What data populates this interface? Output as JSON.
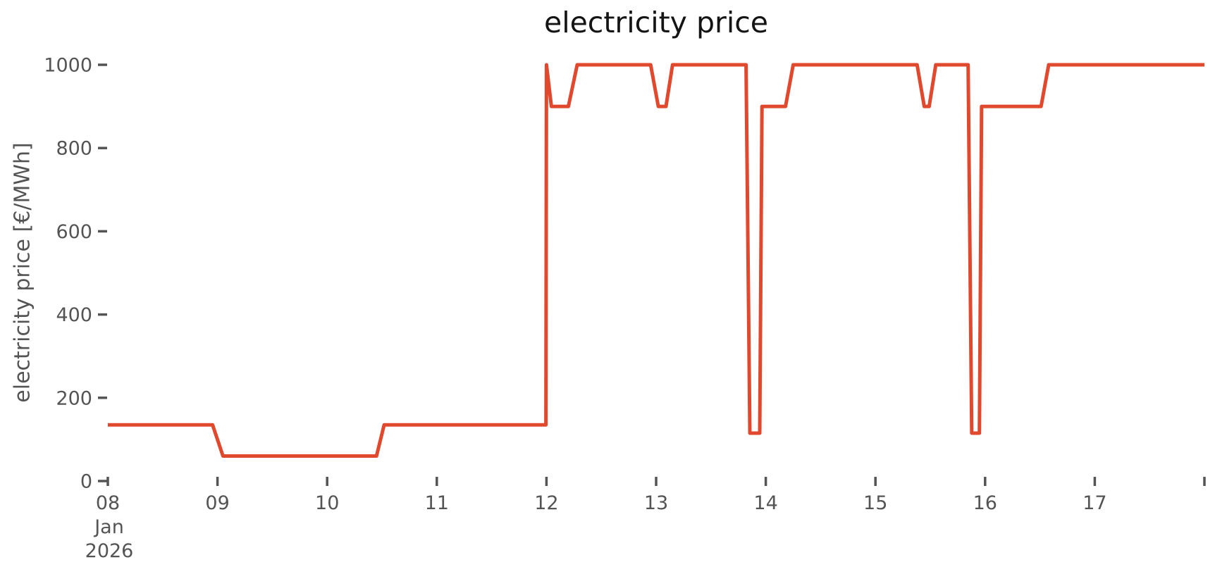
{
  "chart_data": {
    "type": "line",
    "title": "electricity price",
    "xlabel": "",
    "ylabel": "electricity price [€/MWh]",
    "grid": false,
    "legend": false,
    "background_color": "#ffffff",
    "title_color": "#141414",
    "label_color": "#545454",
    "x_axis": {
      "unit": "day of month, January 2026",
      "tick_days": [
        8,
        9,
        10,
        11,
        12,
        13,
        14,
        15,
        16,
        17
      ],
      "tick_labels": [
        "08",
        "09",
        "10",
        "11",
        "12",
        "13",
        "14",
        "15",
        "16",
        "17"
      ],
      "first_tick_sublabels": [
        "Jan",
        "2026"
      ],
      "unlabeled_tick_day": 18,
      "range_days": [
        8,
        18
      ]
    },
    "y_axis": {
      "ticks": [
        0,
        200,
        400,
        600,
        800,
        1000
      ],
      "tick_labels": [
        "0",
        "200",
        "400",
        "600",
        "800",
        "1000"
      ],
      "range": [
        0,
        1050
      ]
    },
    "series": [
      {
        "name": "electricity price",
        "color": "#e0492e",
        "line_width": 5,
        "points_day_value": [
          [
            8.0,
            135
          ],
          [
            8.955,
            135
          ],
          [
            9.05,
            60
          ],
          [
            10.45,
            60
          ],
          [
            10.52,
            135
          ],
          [
            11.995,
            135
          ],
          [
            12.0,
            1000
          ],
          [
            12.045,
            900
          ],
          [
            12.2,
            900
          ],
          [
            12.28,
            1000
          ],
          [
            12.95,
            1000
          ],
          [
            13.02,
            900
          ],
          [
            13.09,
            900
          ],
          [
            13.15,
            1000
          ],
          [
            13.82,
            1000
          ],
          [
            13.855,
            115
          ],
          [
            13.945,
            115
          ],
          [
            13.965,
            900
          ],
          [
            14.18,
            900
          ],
          [
            14.25,
            1000
          ],
          [
            15.38,
            1000
          ],
          [
            15.445,
            900
          ],
          [
            15.49,
            900
          ],
          [
            15.55,
            1000
          ],
          [
            15.845,
            1000
          ],
          [
            15.878,
            115
          ],
          [
            15.948,
            115
          ],
          [
            15.968,
            900
          ],
          [
            16.51,
            900
          ],
          [
            16.58,
            1000
          ],
          [
            18.0,
            1000
          ]
        ]
      }
    ]
  }
}
